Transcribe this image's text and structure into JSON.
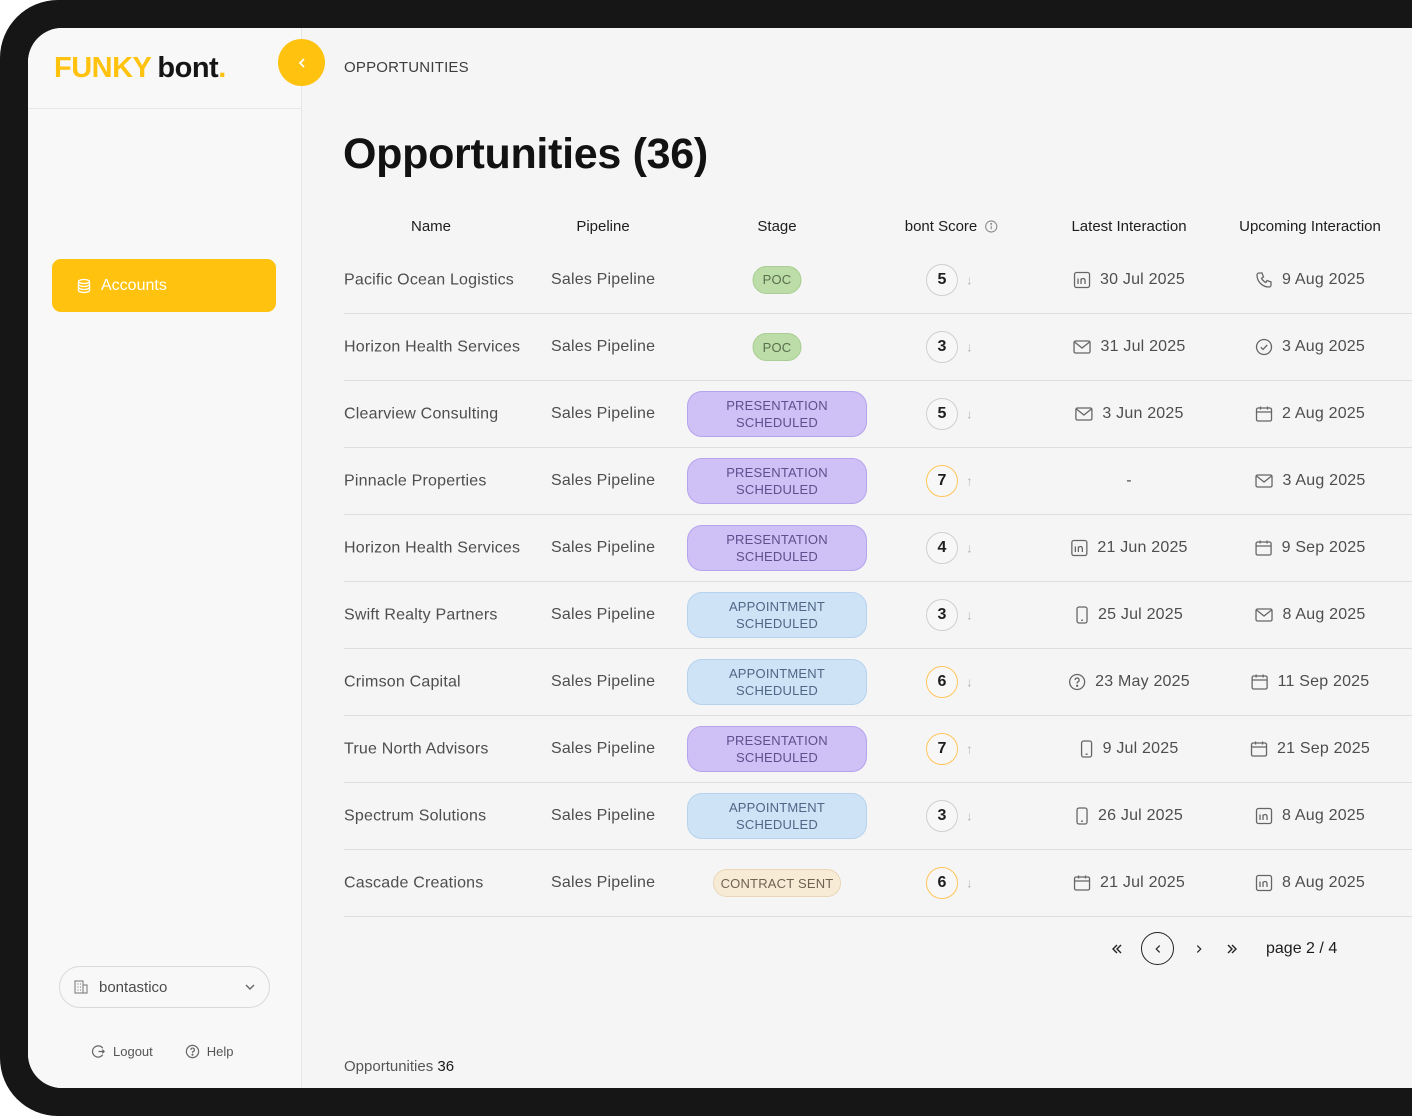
{
  "brand": {
    "part1": "FUNKY",
    "part2": "bont",
    "dot": "."
  },
  "breadcrumb": "OPPORTUNITIES",
  "page_title": "Opportunities (36)",
  "sidebar": {
    "nav_accounts": "Accounts",
    "workspace": "bontastico",
    "logout": "Logout",
    "help": "Help"
  },
  "table": {
    "headers": {
      "name": "Name",
      "pipeline": "Pipeline",
      "stage": "Stage",
      "score": "bont Score",
      "latest": "Latest Interaction",
      "upcoming": "Upcoming Interaction"
    },
    "rows": [
      {
        "name": "Pacific Ocean Logistics",
        "pipeline": "Sales Pipeline",
        "stage": "POC",
        "stage_type": "poc",
        "score": "5",
        "trend": "↓",
        "latest": "30 Jul 2025",
        "latest_icon": "linkedin-icon",
        "upcoming": "9 Aug 2025",
        "upcoming_icon": "phone-icon"
      },
      {
        "name": "Horizon Health Services",
        "pipeline": "Sales Pipeline",
        "stage": "POC",
        "stage_type": "poc",
        "score": "3",
        "trend": "↓",
        "latest": "31 Jul 2025",
        "latest_icon": "mail-icon",
        "upcoming": "3 Aug 2025",
        "upcoming_icon": "check-circle-icon"
      },
      {
        "name": "Clearview Consulting",
        "pipeline": "Sales Pipeline",
        "stage": "PRESENTATION\nSCHEDULED",
        "stage_type": "pres",
        "score": "5",
        "trend": "↓",
        "latest": "3 Jun 2025",
        "latest_icon": "mail-icon",
        "upcoming": "2 Aug 2025",
        "upcoming_icon": "calendar-icon"
      },
      {
        "name": "Pinnacle Properties",
        "pipeline": "Sales Pipeline",
        "stage": "PRESENTATION\nSCHEDULED",
        "stage_type": "pres",
        "score": "7",
        "trend": "↑",
        "latest": "-",
        "latest_icon": "",
        "upcoming": "3 Aug 2025",
        "upcoming_icon": "mail-icon"
      },
      {
        "name": "Horizon Health Services",
        "pipeline": "Sales Pipeline",
        "stage": "PRESENTATION\nSCHEDULED",
        "stage_type": "pres",
        "score": "4",
        "trend": "↓",
        "latest": "21 Jun 2025",
        "latest_icon": "linkedin-icon",
        "upcoming": "9 Sep 2025",
        "upcoming_icon": "calendar-icon"
      },
      {
        "name": "Swift Realty Partners",
        "pipeline": "Sales Pipeline",
        "stage": "APPOINTMENT\nSCHEDULED",
        "stage_type": "appt",
        "score": "3",
        "trend": "↓",
        "latest": "25 Jul 2025",
        "latest_icon": "mobile-icon",
        "upcoming": "8 Aug 2025",
        "upcoming_icon": "mail-icon"
      },
      {
        "name": "Crimson Capital",
        "pipeline": "Sales Pipeline",
        "stage": "APPOINTMENT\nSCHEDULED",
        "stage_type": "appt",
        "score": "6",
        "trend": "↓",
        "latest": "23 May 2025",
        "latest_icon": "question-circle-icon",
        "upcoming": "11 Sep 2025",
        "upcoming_icon": "calendar-icon"
      },
      {
        "name": "True North Advisors",
        "pipeline": "Sales Pipeline",
        "stage": "PRESENTATION\nSCHEDULED",
        "stage_type": "pres",
        "score": "7",
        "trend": "↑",
        "latest": "9 Jul 2025",
        "latest_icon": "mobile-icon",
        "upcoming": "21 Sep 2025",
        "upcoming_icon": "calendar-icon"
      },
      {
        "name": "Spectrum Solutions",
        "pipeline": "Sales Pipeline",
        "stage": "APPOINTMENT\nSCHEDULED",
        "stage_type": "appt",
        "score": "3",
        "trend": "↓",
        "latest": "26 Jul 2025",
        "latest_icon": "mobile-icon",
        "upcoming": "8 Aug 2025",
        "upcoming_icon": "linkedin-icon"
      },
      {
        "name": "Cascade Creations",
        "pipeline": "Sales Pipeline",
        "stage": "CONTRACT SENT",
        "stage_type": "contract",
        "score": "6",
        "trend": "↓",
        "latest": "21 Jul 2025",
        "latest_icon": "calendar-icon",
        "upcoming": "8 Aug 2025",
        "upcoming_icon": "linkedin-icon"
      }
    ]
  },
  "pagination": {
    "label": "page",
    "current": "2",
    "sep": "/",
    "total": "4"
  },
  "footer": {
    "label": "Opportunities",
    "count": "36"
  },
  "colors": {
    "accent": "#ffc20e",
    "poc": "#bcdca8",
    "presentation": "#cfc0f5",
    "appointment": "#cfe3f7",
    "contract": "#f8ebd6"
  }
}
